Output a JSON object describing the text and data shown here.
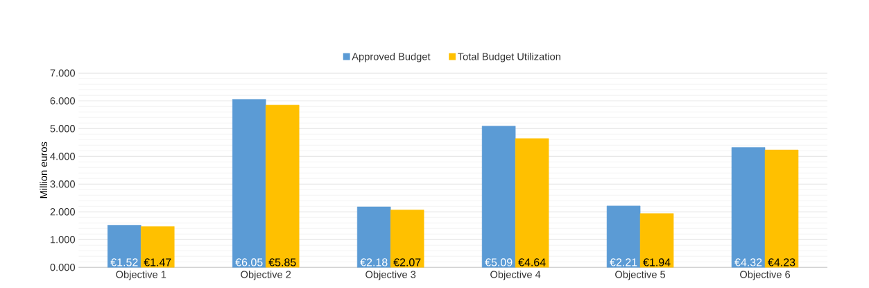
{
  "chart_data": {
    "type": "bar",
    "ylabel": "Million euros",
    "categories": [
      "Objective 1",
      "Objective 2",
      "Objective 3",
      "Objective 4",
      "Objective 5",
      "Objective 6"
    ],
    "series": [
      {
        "name": "Approved Budget",
        "color": "#5b9bd5",
        "values": [
          1.52,
          6.05,
          2.18,
          5.09,
          2.21,
          4.32
        ],
        "value_labels": [
          "€1.52",
          "€6.05",
          "€2.18",
          "€5.09",
          "€2.21",
          "€4.32"
        ]
      },
      {
        "name": "Total Budget Utilization",
        "color": "#ffc000",
        "values": [
          1.47,
          5.85,
          2.07,
          4.64,
          1.94,
          4.23
        ],
        "value_labels": [
          "€1.47",
          "€5.85",
          "€2.07",
          "€4.64",
          "€1.94",
          "€4.23"
        ]
      }
    ],
    "ylim": [
      0,
      7
    ],
    "yticks": [
      {
        "value": 0,
        "label": "0.000"
      },
      {
        "value": 1,
        "label": "1.000"
      },
      {
        "value": 2,
        "label": "2.000"
      },
      {
        "value": 3,
        "label": "3.000"
      },
      {
        "value": 4,
        "label": "4.000"
      },
      {
        "value": 5,
        "label": "5.000"
      },
      {
        "value": 6,
        "label": "6.000"
      },
      {
        "value": 7,
        "label": "7.000"
      }
    ],
    "grid": "y",
    "legend": "top"
  }
}
